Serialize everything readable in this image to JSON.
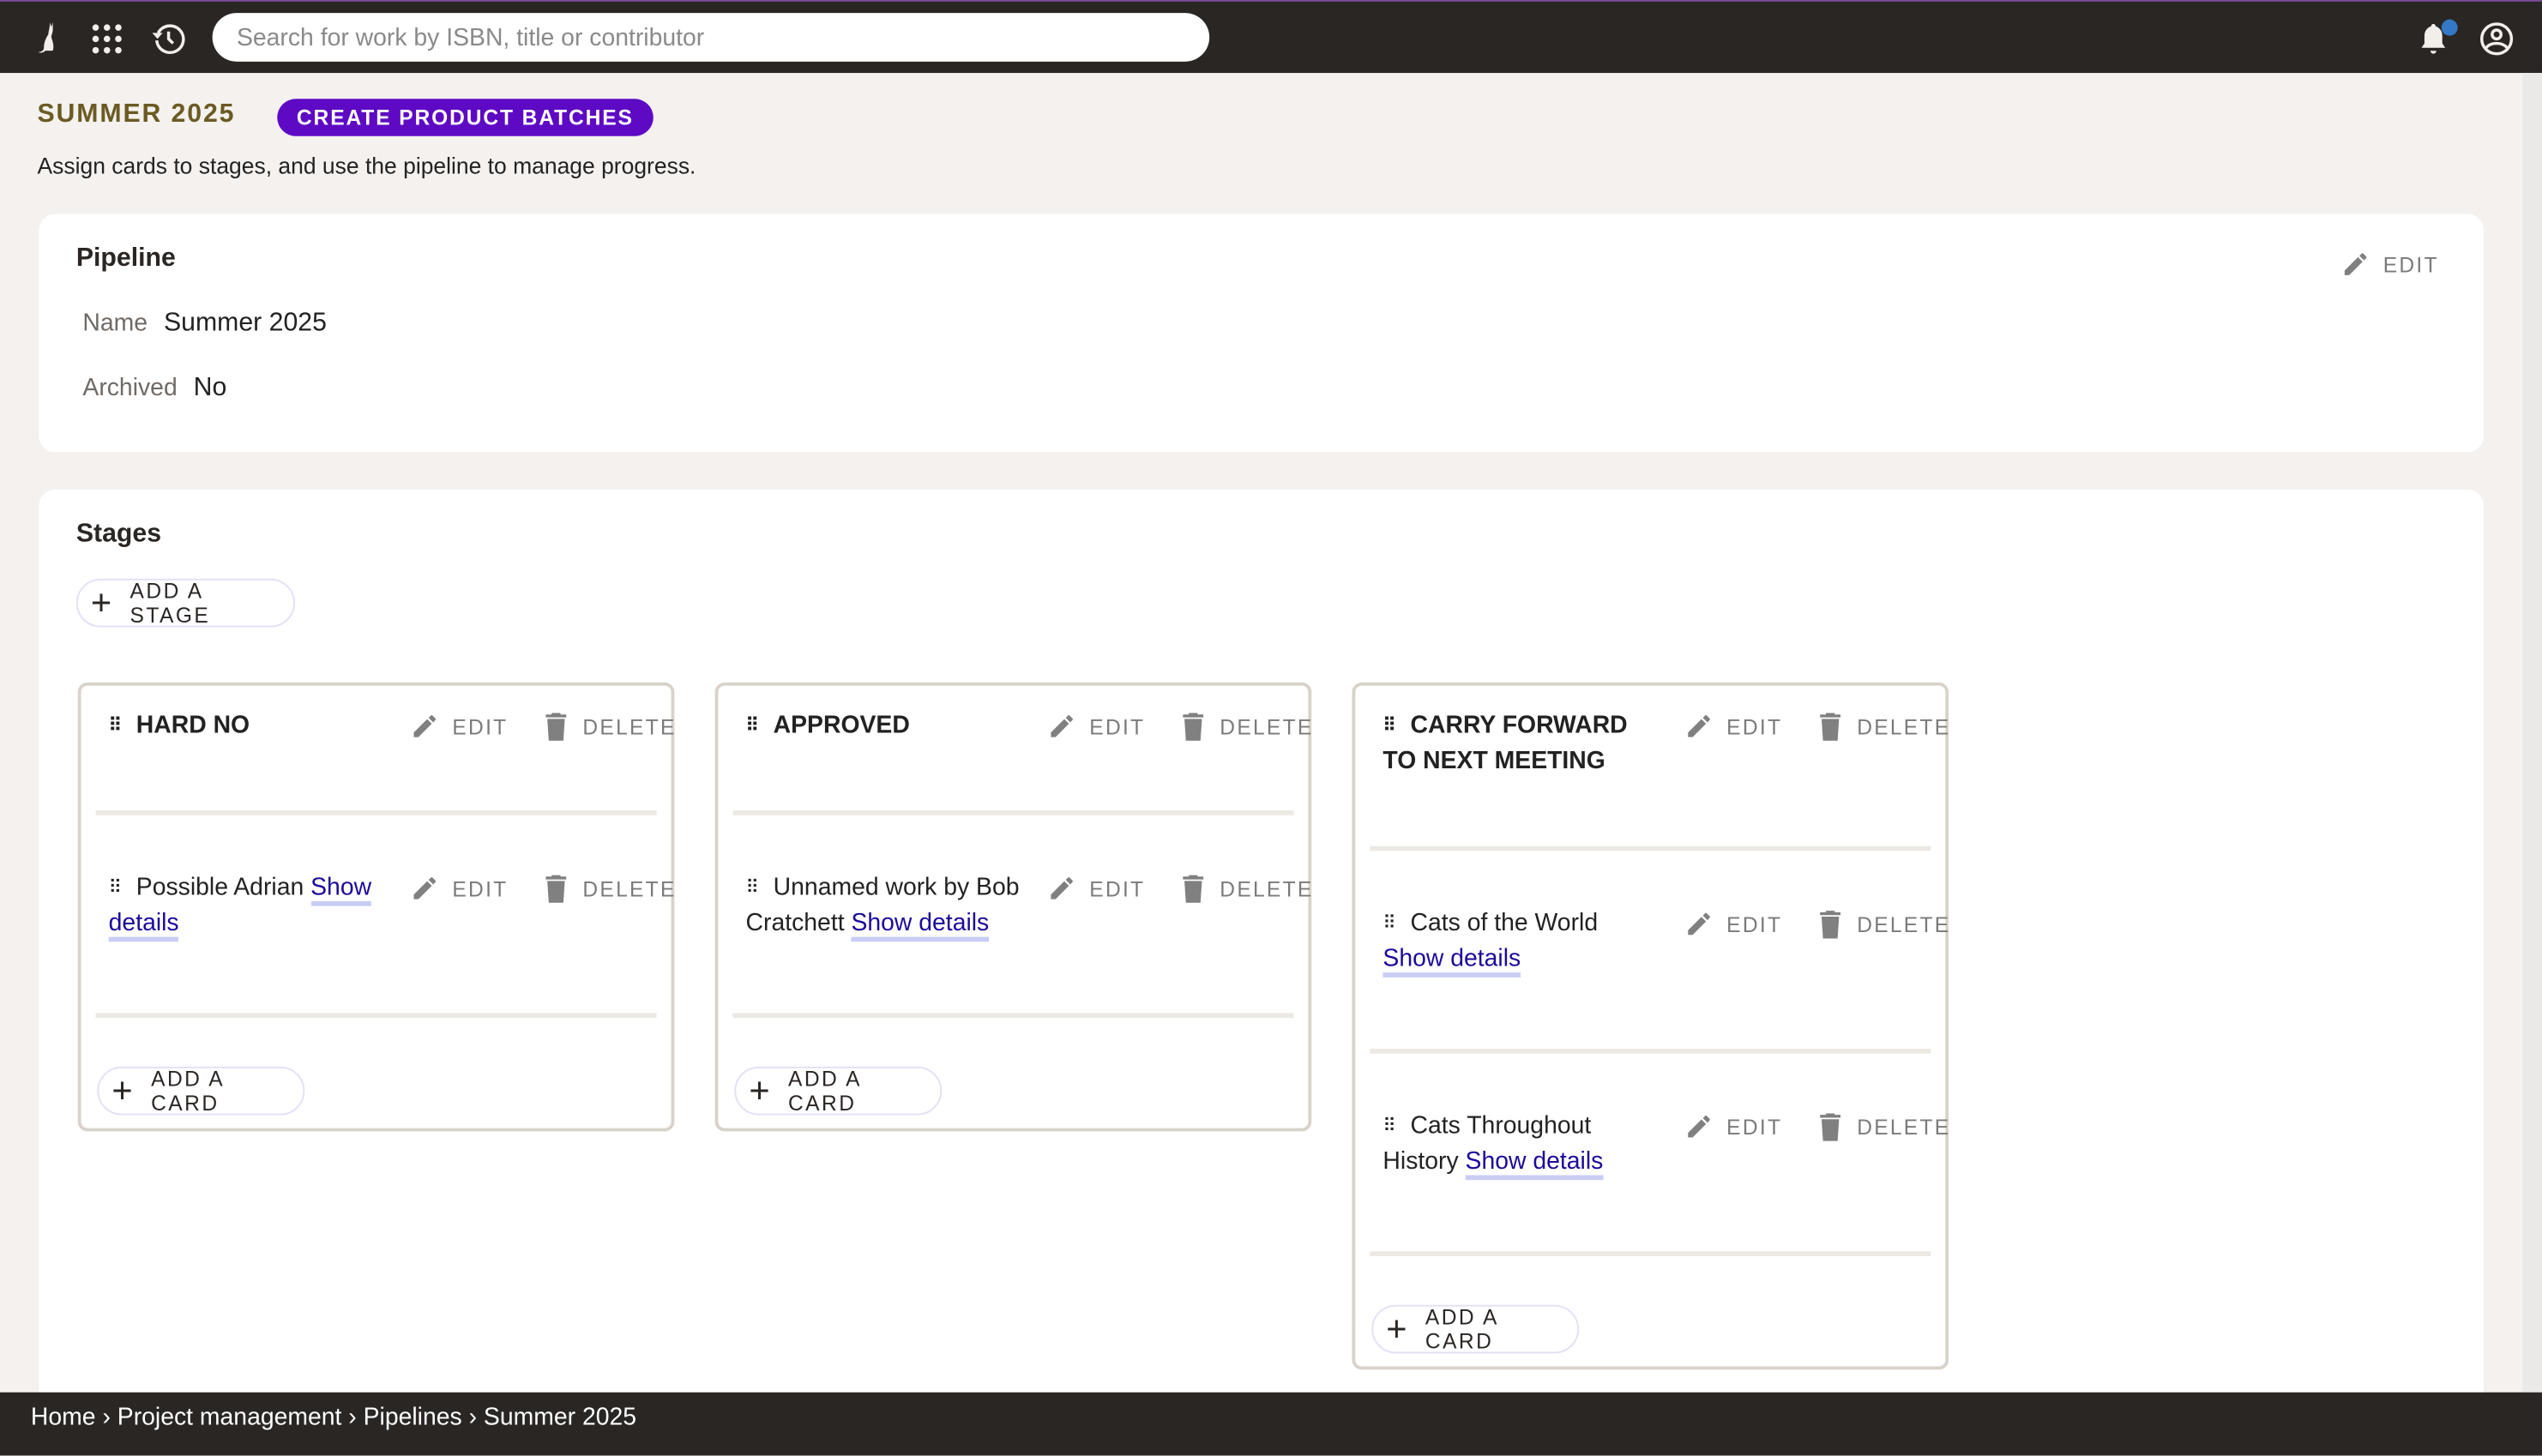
{
  "topbar": {
    "search_placeholder": "Search for work by ISBN, title or contributor",
    "notification_dot_color": "#3478c6",
    "icons": [
      "cat-logo-icon",
      "apps-grid-icon",
      "history-icon",
      "bell-icon",
      "account-icon"
    ]
  },
  "header": {
    "title": "SUMMER 2025",
    "cta_label": "CREATE PRODUCT BATCHES",
    "subtitle": "Assign cards to stages, and use the pipeline to manage progress.",
    "accent": "#5e0ac4"
  },
  "pipeline": {
    "heading": "Pipeline",
    "edit_label": "EDIT",
    "name_label": "Name",
    "name_value": "Summer 2025",
    "archived_label": "Archived",
    "archived_value": "No"
  },
  "stages": {
    "heading": "Stages",
    "add_stage_label": "ADD A STAGE",
    "edit_label": "EDIT",
    "delete_label": "DELETE",
    "add_card_label": "ADD A CARD",
    "show_details_label": "Show details",
    "columns": [
      {
        "title": "HARD NO",
        "cards": [
          {
            "text": "Possible Adrian"
          }
        ]
      },
      {
        "title": "APPROVED",
        "cards": [
          {
            "text": "Unnamed work by Bob Cratchett"
          }
        ]
      },
      {
        "title": "CARRY FORWARD TO NEXT MEETING",
        "cards": [
          {
            "text": "Cats of the World"
          },
          {
            "text": "Cats Throughout History"
          }
        ]
      }
    ]
  },
  "breadcrumb": {
    "items": [
      "Home",
      "Project management",
      "Pipelines",
      "Summer 2025"
    ],
    "separator": "›"
  }
}
